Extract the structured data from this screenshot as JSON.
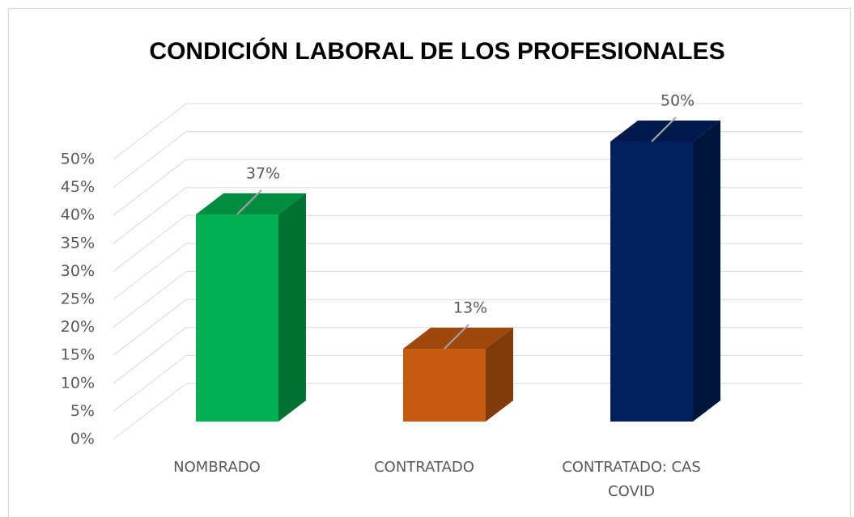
{
  "chart_data": {
    "type": "bar3d",
    "title": "CONDICIÓN LABORAL DE LOS PROFESIONALES",
    "categories": [
      "NOMBRADO",
      "CONTRATADO",
      "CONTRATADO: CAS COVID"
    ],
    "values": [
      37,
      13,
      50
    ],
    "value_labels": [
      "37%",
      "13%",
      "50%"
    ],
    "colors": [
      "#00b050",
      "#c55a11",
      "#002060"
    ],
    "ylim": [
      0,
      50
    ],
    "yticks": [
      {
        "value": 0,
        "label": "0%"
      },
      {
        "value": 5,
        "label": "5%"
      },
      {
        "value": 10,
        "label": "10%"
      },
      {
        "value": 15,
        "label": "15%"
      },
      {
        "value": 20,
        "label": "20%"
      },
      {
        "value": 25,
        "label": "25%"
      },
      {
        "value": 30,
        "label": "30%"
      },
      {
        "value": 35,
        "label": "35%"
      },
      {
        "value": 40,
        "label": "40%"
      },
      {
        "value": 45,
        "label": "45%"
      },
      {
        "value": 50,
        "label": "50%"
      }
    ],
    "grid": true
  }
}
